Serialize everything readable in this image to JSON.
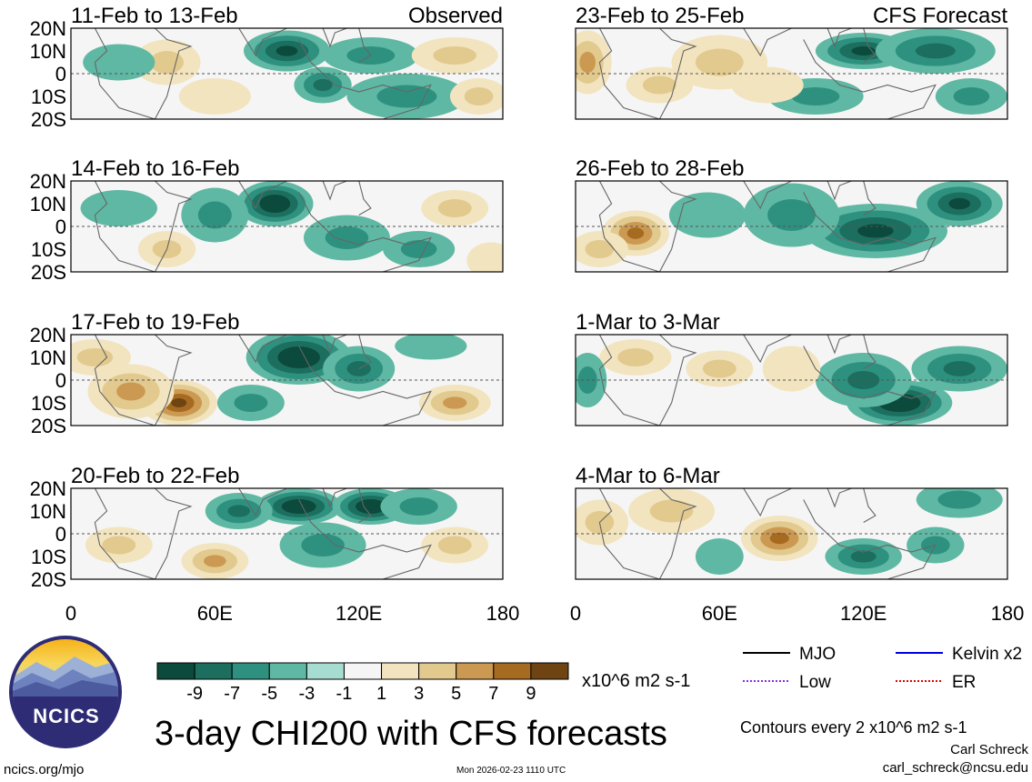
{
  "chart_data": {
    "type": "heatmap",
    "title": "3-day CHI200 with CFS forecasts",
    "colorbar_unit": "x10^6 m2 s-1",
    "colorbar_ticks": [
      "-9",
      "-7",
      "-5",
      "-3",
      "-1",
      "1",
      "3",
      "5",
      "7",
      "9"
    ],
    "colorbar_colors": [
      "#0b4a3c",
      "#1c6f5e",
      "#2e9180",
      "#5fb8a3",
      "#a6dcd1",
      "#f5f5f5",
      "#f2e4bf",
      "#e2c98e",
      "#cc9952",
      "#a66a20",
      "#6e4413"
    ],
    "lat_ticks": [
      "20N",
      "10N",
      "0",
      "10S",
      "20S"
    ],
    "lon_ticks": [
      "0",
      "60E",
      "120E",
      "180"
    ],
    "xlim": [
      0,
      180
    ],
    "ylim": [
      -20,
      20
    ],
    "contour_note": "Contours every 2 x10^6 m2 s-1",
    "legend": [
      {
        "label": "MJO",
        "color": "#000000",
        "style": "solid"
      },
      {
        "label": "Kelvin x2",
        "color": "#0000dd",
        "style": "solid"
      },
      {
        "label": "Low",
        "color": "#8a2be2",
        "style": "dotted"
      },
      {
        "label": "ER",
        "color": "#dd0000",
        "style": "dotted"
      }
    ],
    "panels": [
      {
        "period": "11-Feb to 13-Feb",
        "tag": "Observed",
        "col": 0,
        "row": 0,
        "blobs": [
          [
            90,
            10,
            18,
            9,
            -8
          ],
          [
            125,
            8,
            20,
            8,
            -4
          ],
          [
            105,
            -5,
            12,
            8,
            -5
          ],
          [
            140,
            -10,
            25,
            10,
            -3
          ],
          [
            40,
            5,
            14,
            10,
            3
          ],
          [
            160,
            8,
            18,
            8,
            4
          ],
          [
            60,
            -10,
            15,
            8,
            2
          ],
          [
            20,
            5,
            15,
            8,
            -2
          ],
          [
            170,
            -10,
            12,
            8,
            3
          ]
        ]
      },
      {
        "period": "23-Feb to 25-Feb",
        "tag": "CFS Forecast",
        "col": 1,
        "row": 0,
        "blobs": [
          [
            5,
            5,
            10,
            14,
            6
          ],
          [
            35,
            -5,
            14,
            8,
            4
          ],
          [
            120,
            10,
            20,
            8,
            -7
          ],
          [
            100,
            -10,
            20,
            8,
            -4
          ],
          [
            150,
            10,
            25,
            10,
            -5
          ],
          [
            60,
            5,
            20,
            12,
            3
          ],
          [
            165,
            -10,
            15,
            8,
            -3
          ],
          [
            80,
            -5,
            15,
            8,
            2
          ]
        ]
      },
      {
        "period": "14-Feb to 16-Feb",
        "tag": "",
        "col": 0,
        "row": 1,
        "blobs": [
          [
            85,
            10,
            16,
            10,
            -9
          ],
          [
            115,
            -5,
            18,
            10,
            -4
          ],
          [
            145,
            -10,
            15,
            8,
            -4
          ],
          [
            60,
            5,
            14,
            12,
            -3
          ],
          [
            40,
            -10,
            12,
            8,
            3
          ],
          [
            160,
            8,
            14,
            8,
            3
          ],
          [
            20,
            8,
            16,
            8,
            -2
          ],
          [
            175,
            -15,
            10,
            8,
            2
          ]
        ]
      },
      {
        "period": "26-Feb to 28-Feb",
        "tag": "",
        "col": 1,
        "row": 1,
        "blobs": [
          [
            25,
            -3,
            14,
            10,
            7
          ],
          [
            125,
            -2,
            30,
            12,
            -8
          ],
          [
            160,
            10,
            18,
            10,
            -7
          ],
          [
            90,
            5,
            20,
            14,
            -4
          ],
          [
            55,
            5,
            16,
            10,
            -2
          ],
          [
            10,
            -10,
            12,
            8,
            4
          ]
        ]
      },
      {
        "period": "17-Feb to 19-Feb",
        "tag": "",
        "col": 0,
        "row": 2,
        "blobs": [
          [
            45,
            -10,
            16,
            10,
            9
          ],
          [
            25,
            -5,
            18,
            12,
            5
          ],
          [
            95,
            10,
            22,
            12,
            -9
          ],
          [
            120,
            5,
            15,
            10,
            -5
          ],
          [
            160,
            -10,
            15,
            8,
            5
          ],
          [
            75,
            -10,
            14,
            8,
            -3
          ],
          [
            10,
            10,
            15,
            8,
            3
          ],
          [
            150,
            15,
            15,
            6,
            -2
          ]
        ]
      },
      {
        "period": "1-Mar to 3-Mar",
        "tag": "",
        "col": 1,
        "row": 2,
        "blobs": [
          [
            135,
            -10,
            22,
            10,
            -9
          ],
          [
            120,
            0,
            20,
            12,
            -6
          ],
          [
            160,
            5,
            20,
            10,
            -5
          ],
          [
            60,
            5,
            14,
            8,
            3
          ],
          [
            25,
            10,
            15,
            8,
            3
          ],
          [
            5,
            0,
            8,
            12,
            -3
          ],
          [
            90,
            5,
            12,
            10,
            2
          ]
        ]
      },
      {
        "period": "20-Feb to 22-Feb",
        "tag": "",
        "col": 0,
        "row": 3,
        "blobs": [
          [
            95,
            12,
            18,
            8,
            -9
          ],
          [
            125,
            12,
            16,
            8,
            -9
          ],
          [
            70,
            10,
            14,
            8,
            -5
          ],
          [
            105,
            -5,
            18,
            10,
            -4
          ],
          [
            60,
            -12,
            14,
            8,
            5
          ],
          [
            160,
            -5,
            14,
            8,
            4
          ],
          [
            20,
            -5,
            14,
            8,
            3
          ],
          [
            145,
            12,
            16,
            8,
            -3
          ]
        ]
      },
      {
        "period": "4-Mar to 6-Mar",
        "tag": "",
        "col": 1,
        "row": 3,
        "blobs": [
          [
            85,
            -2,
            16,
            10,
            7
          ],
          [
            40,
            10,
            18,
            10,
            4
          ],
          [
            120,
            -10,
            16,
            8,
            -6
          ],
          [
            160,
            15,
            18,
            8,
            -4
          ],
          [
            10,
            5,
            12,
            10,
            4
          ],
          [
            60,
            -10,
            10,
            8,
            -2
          ],
          [
            150,
            -5,
            12,
            8,
            -3
          ]
        ]
      }
    ]
  },
  "branding": {
    "logo_text": "NCICS",
    "url": "ncics.org/mjo",
    "timestamp": "Mon 2026-02-23 1110 UTC",
    "author": "Carl Schreck",
    "email": "carl_schreck@ncsu.edu"
  }
}
